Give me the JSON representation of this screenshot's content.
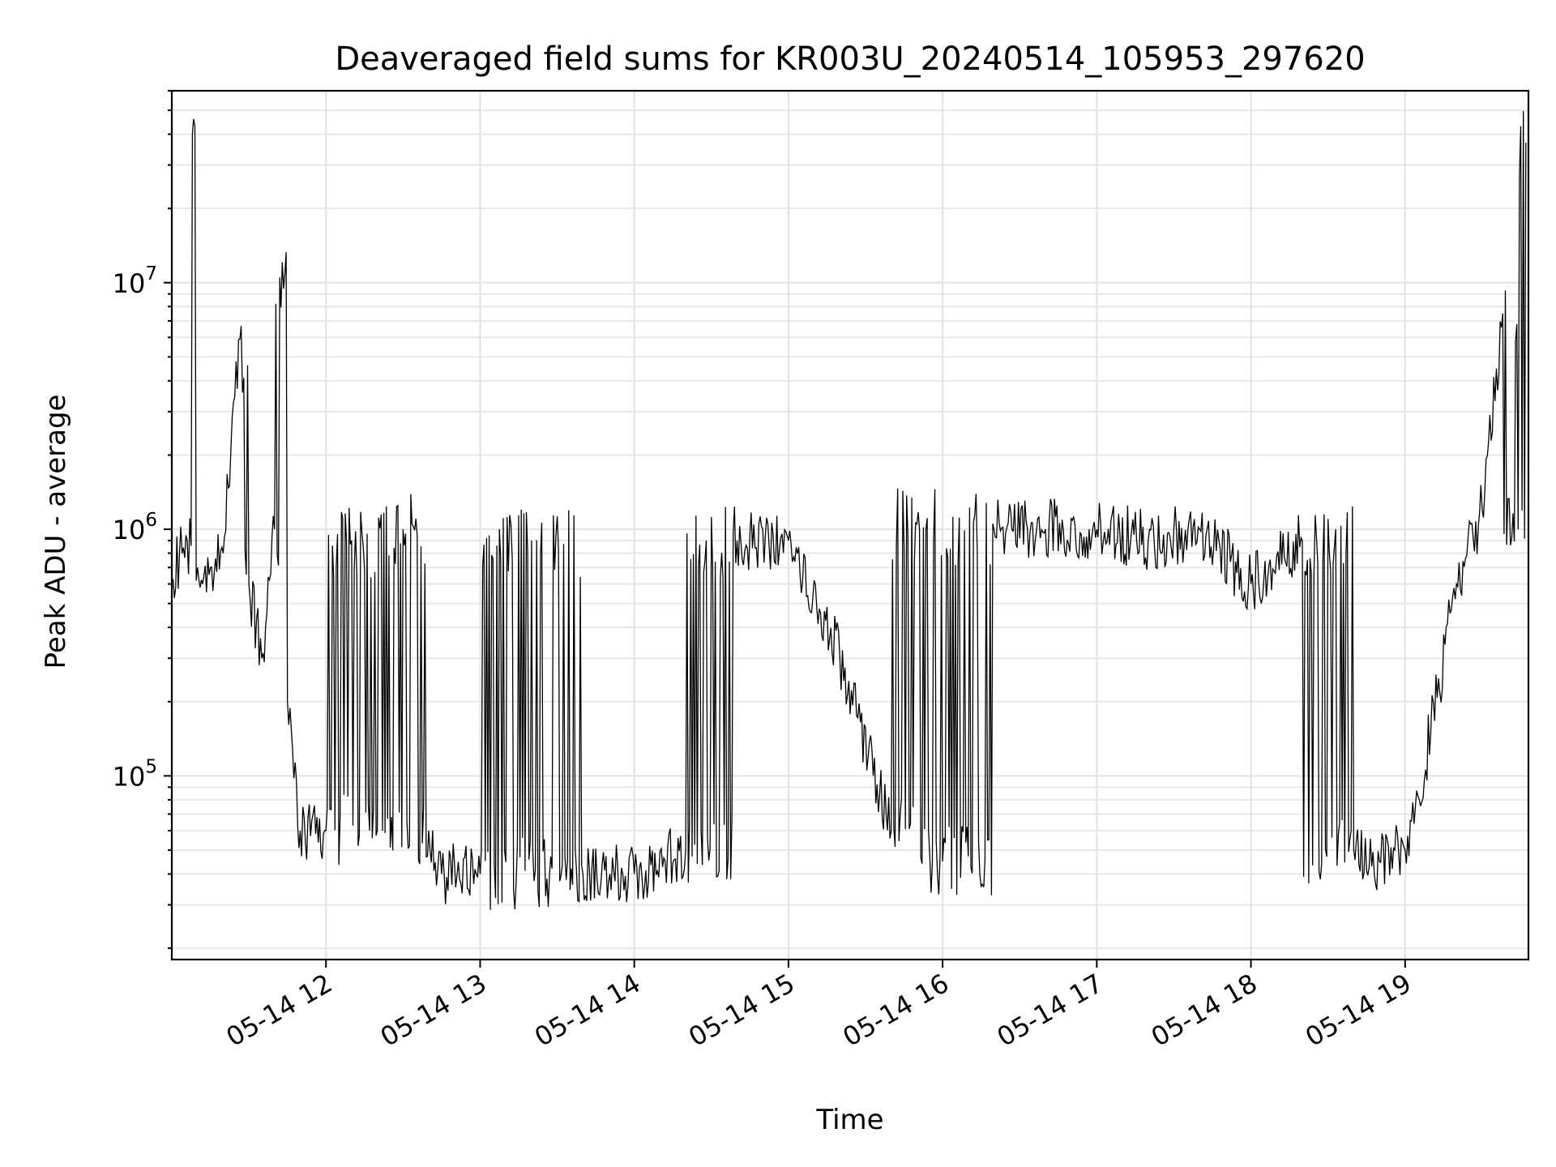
{
  "chart_data": {
    "type": "line",
    "title": "Deaveraged field sums for KR003U_20240514_105953_297620",
    "xlabel": "Time",
    "ylabel": "Peak ADU - average",
    "x_tick_labels": [
      "05-14 12",
      "05-14 13",
      "05-14 14",
      "05-14 15",
      "05-14 16",
      "05-14 17",
      "05-14 18",
      "05-14 19"
    ],
    "x_ticks": [
      "2024-05-14T12:00",
      "2024-05-14T13:00",
      "2024-05-14T14:00",
      "2024-05-14T15:00",
      "2024-05-14T16:00",
      "2024-05-14T17:00",
      "2024-05-14T18:00",
      "2024-05-14T19:00"
    ],
    "xlim": [
      "2024-05-14T11:00",
      "2024-05-14T19:48"
    ],
    "y_scale": "log",
    "ylim": [
      18000,
      60000000
    ],
    "y_ticks": [
      {
        "value": 100000,
        "base": "10",
        "exp": "5"
      },
      {
        "value": 1000000,
        "base": "10",
        "exp": "6"
      },
      {
        "value": 10000000,
        "base": "10",
        "exp": "7"
      }
    ],
    "grid": true,
    "line_color": "#000000",
    "series": [
      {
        "x": [
          "2024-05-14T11:00",
          "2024-05-14T11:03",
          "2024-05-14T11:06",
          "2024-05-14T11:08",
          "2024-05-14T11:09",
          "2024-05-14T11:10",
          "2024-05-14T11:12",
          "2024-05-14T11:15",
          "2024-05-14T11:20",
          "2024-05-14T11:25",
          "2024-05-14T11:30",
          "2024-05-14T11:35",
          "2024-05-14T11:40",
          "2024-05-14T11:42",
          "2024-05-14T11:45",
          "2024-05-14T11:50",
          "2024-05-14T12:00",
          "2024-05-14T12:10",
          "2024-05-14T12:20",
          "2024-05-14T12:30",
          "2024-05-14T12:40",
          "2024-05-14T12:45",
          "2024-05-14T13:00",
          "2024-05-14T13:20",
          "2024-05-14T13:40",
          "2024-05-14T14:00",
          "2024-05-14T14:20",
          "2024-05-14T14:40",
          "2024-05-14T15:00",
          "2024-05-14T15:20",
          "2024-05-14T15:40",
          "2024-05-14T15:50",
          "2024-05-14T16:00",
          "2024-05-14T16:20",
          "2024-05-14T16:40",
          "2024-05-14T17:00",
          "2024-05-14T17:20",
          "2024-05-14T17:40",
          "2024-05-14T18:00",
          "2024-05-14T18:20",
          "2024-05-14T18:40",
          "2024-05-14T18:50",
          "2024-05-14T19:00",
          "2024-05-14T19:10",
          "2024-05-14T19:20",
          "2024-05-14T19:30",
          "2024-05-14T19:38",
          "2024-05-14T19:44",
          "2024-05-14T19:47"
        ],
        "y": [
          600000,
          800000,
          900000,
          40000000,
          43000000,
          700000,
          600000,
          700000,
          800000,
          4800000,
          600000,
          300000,
          1000000,
          10500000,
          200000,
          60000,
          60000,
          900000,
          60000,
          1000000,
          60000,
          40000,
          40000,
          900000,
          40000,
          40000,
          50000,
          900000,
          900000,
          300000,
          60000,
          1050000,
          45000,
          1000000,
          1000000,
          1000000,
          900000,
          1000000,
          600000,
          900000,
          50000,
          45000,
          50000,
          150000,
          600000,
          1200000,
          7500000,
          1000000,
          37000000
        ]
      }
    ]
  }
}
